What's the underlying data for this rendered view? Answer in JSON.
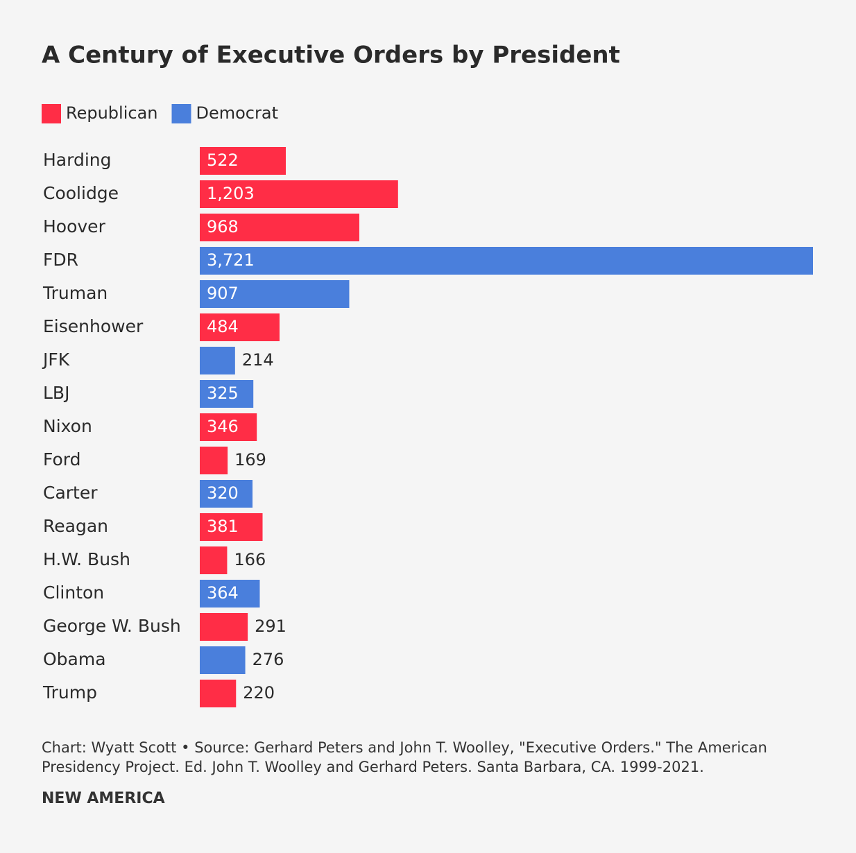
{
  "chart_data": {
    "type": "bar",
    "orientation": "horizontal",
    "title": "A Century of Executive Orders by President",
    "categories": [
      "Harding",
      "Coolidge",
      "Hoover",
      "FDR",
      "Truman",
      "Eisenhower",
      "JFK",
      "LBJ",
      "Nixon",
      "Ford",
      "Carter",
      "Reagan",
      "H.W. Bush",
      "Clinton",
      "George W. Bush",
      "Obama",
      "Trump"
    ],
    "series": [
      {
        "name": "Republican",
        "color": "#ff2d46",
        "values": [
          522,
          1203,
          968,
          null,
          null,
          484,
          null,
          null,
          346,
          169,
          null,
          381,
          166,
          null,
          291,
          null,
          220
        ],
        "value_labels": [
          "522",
          "1,203",
          "968",
          null,
          null,
          "484",
          null,
          null,
          "346",
          "169",
          null,
          "381",
          "166",
          null,
          "291",
          null,
          "220"
        ]
      },
      {
        "name": "Democrat",
        "color": "#4a7fdc",
        "values": [
          null,
          null,
          null,
          3721,
          907,
          null,
          214,
          325,
          null,
          null,
          320,
          null,
          null,
          364,
          null,
          276,
          null
        ],
        "value_labels": [
          null,
          null,
          null,
          "3,721",
          "907",
          null,
          "214",
          "325",
          null,
          null,
          "320",
          null,
          null,
          "364",
          null,
          "276",
          null
        ]
      }
    ],
    "legend": "top-left",
    "source": "Chart: Wyatt Scott • Source: Gerhard Peters and John T. Woolley, \"Executive Orders.\" The American Presidency Project. Ed. John T. Woolley and Gerhard Peters. Santa Barbara, CA. 1999-2021.",
    "brand": "NEW AMERICA"
  }
}
